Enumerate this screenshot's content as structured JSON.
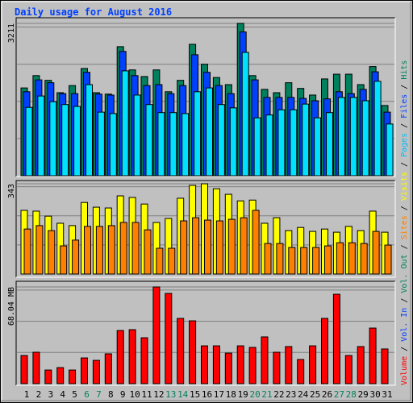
{
  "title": "Daily usage for August 2016",
  "legend_separator": " / ",
  "legend": [
    {
      "name": "Volume",
      "color": "#ff0000"
    },
    {
      "name": "Vol. In",
      "color": "#0040ff"
    },
    {
      "name": "Vol. Out",
      "color": "#00805c"
    },
    {
      "name": "Sites",
      "color": "#ff8000"
    },
    {
      "name": "Visits",
      "color": "#ffff00"
    },
    {
      "name": "Pages",
      "color": "#00c0ff"
    },
    {
      "name": "Files",
      "color": "#0040ff"
    },
    {
      "name": "Hits",
      "color": "#00805c"
    }
  ],
  "chart_data": [
    {
      "type": "bar",
      "ylim": [
        0,
        3211
      ],
      "yticks": [
        3211
      ],
      "grid": true,
      "series": [
        {
          "color": "#00805c",
          "values": [
            1850,
            2110,
            2010,
            1750,
            1900,
            2260,
            1750,
            1720,
            2720,
            2230,
            2090,
            2230,
            1770,
            2010,
            2770,
            2350,
            2070,
            1920,
            3211,
            2110,
            1820,
            1750,
            1960,
            1840,
            1700,
            2040,
            2140,
            2140,
            1920,
            2300,
            1480
          ]
        },
        {
          "color": "#0040ff",
          "values": [
            1770,
            2020,
            1960,
            1730,
            1730,
            2180,
            1720,
            1700,
            2620,
            2110,
            1900,
            1920,
            1730,
            1900,
            2550,
            2180,
            1900,
            1730,
            3030,
            2020,
            1650,
            1650,
            1650,
            1630,
            1580,
            1620,
            1770,
            1730,
            1820,
            2190,
            1340
          ]
        },
        {
          "color": "#00e0ff",
          "values": [
            1440,
            1680,
            1560,
            1500,
            1460,
            1920,
            1340,
            1310,
            2210,
            1700,
            1500,
            1330,
            1330,
            1310,
            1770,
            1850,
            1500,
            1430,
            2600,
            1220,
            1280,
            1390,
            1390,
            1510,
            1220,
            1330,
            1650,
            1650,
            1580,
            1990,
            1090
          ]
        }
      ]
    },
    {
      "type": "bar",
      "ylim": [
        0,
        343
      ],
      "yticks": [
        343
      ],
      "grid": true,
      "series": [
        {
          "color": "#ffff00",
          "values": [
            242,
            239,
            220,
            193,
            184,
            272,
            254,
            251,
            297,
            291,
            266,
            196,
            211,
            288,
            337,
            343,
            324,
            303,
            278,
            281,
            193,
            214,
            165,
            177,
            162,
            171,
            159,
            181,
            165,
            239,
            159
          ]
        },
        {
          "color": "#ff8000",
          "values": [
            171,
            184,
            165,
            107,
            129,
            181,
            181,
            184,
            196,
            196,
            168,
            98,
            98,
            202,
            214,
            205,
            202,
            208,
            214,
            242,
            116,
            116,
            101,
            101,
            101,
            107,
            119,
            119,
            116,
            162,
            110
          ]
        }
      ]
    },
    {
      "type": "bar",
      "ylim": [
        0,
        68.04
      ],
      "yticks": [
        {
          "value": 68.04,
          "label": "68.04 MB"
        }
      ],
      "grid": true,
      "categories": [
        "1",
        "2",
        "3",
        "4",
        "5",
        "6",
        "7",
        "8",
        "9",
        "10",
        "11",
        "12",
        "13",
        "14",
        "15",
        "16",
        "17",
        "18",
        "19",
        "20",
        "21",
        "22",
        "23",
        "24",
        "25",
        "26",
        "27",
        "28",
        "29",
        "30",
        "31"
      ],
      "category_colors": [
        "#000000",
        "#000000",
        "#000000",
        "#000000",
        "#000000",
        "#00805c",
        "#00805c",
        "#000000",
        "#000000",
        "#000000",
        "#000000",
        "#000000",
        "#00805c",
        "#00805c",
        "#000000",
        "#000000",
        "#000000",
        "#000000",
        "#000000",
        "#00805c",
        "#00805c",
        "#000000",
        "#000000",
        "#000000",
        "#000000",
        "#000000",
        "#00805c",
        "#00805c",
        "#000000",
        "#000000",
        "#000000"
      ],
      "series": [
        {
          "color": "#ff0000",
          "values": [
            19.8,
            22.1,
            9.6,
            11.3,
            9.6,
            18.1,
            16.4,
            21.0,
            37.4,
            38.0,
            32.3,
            68.04,
            63.5,
            45.9,
            44.2,
            26.6,
            26.6,
            21.5,
            26.6,
            25.5,
            32.9,
            22.1,
            26.1,
            17.0,
            26.6,
            45.9,
            62.9,
            19.8,
            26.1,
            39.1,
            24.4
          ]
        }
      ]
    }
  ]
}
